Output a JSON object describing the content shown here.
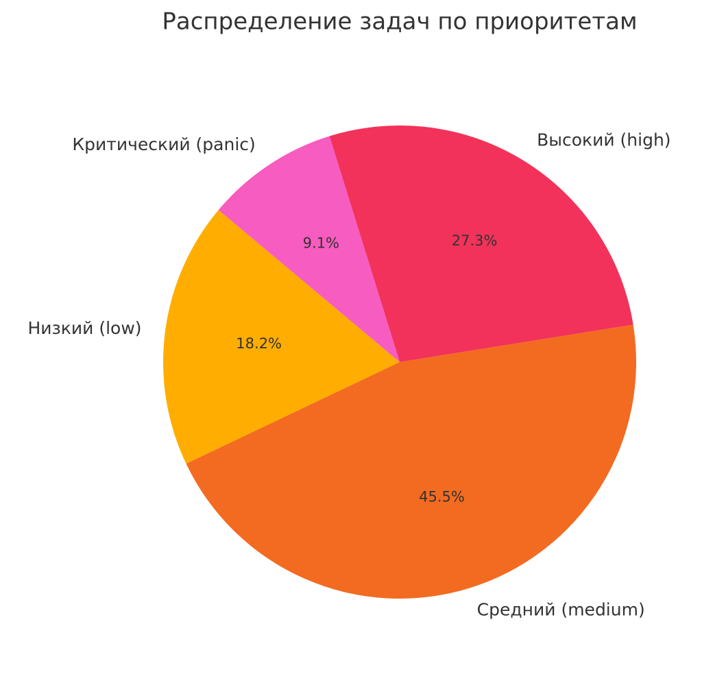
{
  "chart_data": {
    "type": "pie",
    "title": "Распределение задач по приоритетам",
    "categories": [
      "Низкий (low)",
      "Средний (medium)",
      "Высокий (high)",
      "Критический (panic)"
    ],
    "values": [
      18.2,
      45.5,
      27.3,
      9.1
    ],
    "value_labels": [
      "18.2%",
      "45.5%",
      "27.3%",
      "9.1%"
    ],
    "colors": [
      "#ffad00",
      "#f26b21",
      "#f2325a",
      "#f75cc0"
    ],
    "startangle": 140
  }
}
